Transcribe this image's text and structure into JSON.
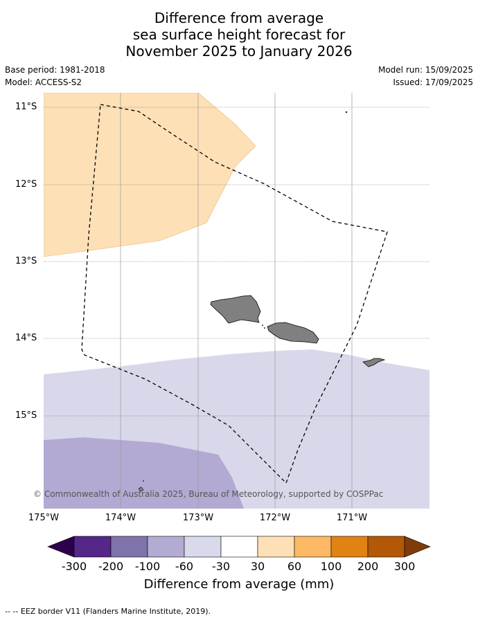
{
  "title": {
    "line1": "Difference from average",
    "line2": "sea surface height forecast for",
    "line3": "November 2025 to January 2026"
  },
  "meta": {
    "base_period": "Base period: 1981-2018",
    "model": "Model: ACCESS-S2",
    "model_run": "Model run: 15/09/2025",
    "issued": "Issued: 17/09/2025"
  },
  "map": {
    "lat_labels": [
      "11°S",
      "12°S",
      "13°S",
      "14°S",
      "15°S"
    ],
    "lon_labels": [
      "175°W",
      "174°W",
      "173°W",
      "172°W",
      "171°W"
    ],
    "copyright": "© Commonwealth of Australia 2025, Bureau of Meteorology, supported by COSPPac",
    "colors": {
      "pos_30_60": "#fde0b5",
      "neg_30_60": "#d8d8ea",
      "neg_60_100": "#b2aad2",
      "land": "#808080"
    }
  },
  "colorbar": {
    "ticks": [
      "-300",
      "-200",
      "-100",
      "-60",
      "-30",
      "30",
      "60",
      "100",
      "200",
      "300"
    ],
    "label": "Difference from average (mm)",
    "colors": [
      "#2d004b",
      "#542788",
      "#8073ac",
      "#b2abd2",
      "#d8daeb",
      "#ffffff",
      "#fee0b6",
      "#fdb863",
      "#e08214",
      "#b35806",
      "#7f3b08"
    ]
  },
  "footer": {
    "legend_text": "-- -- EEZ border V11 (Flanders Marine Institute, 2019)."
  }
}
